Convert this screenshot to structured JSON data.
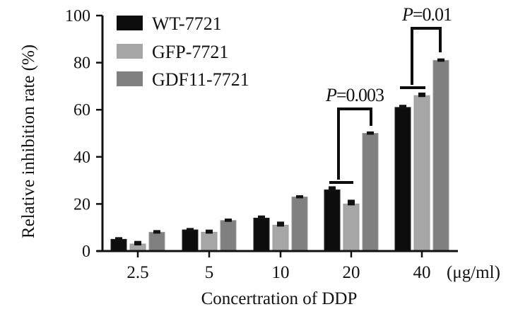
{
  "chart_data": {
    "type": "bar",
    "title": "",
    "xlabel": "Concertration of DDP",
    "x_unit": "(μg/ml)",
    "ylabel": "Relative inhibition rate (%)",
    "ylim": [
      0,
      100
    ],
    "yticks": [
      "0",
      "20",
      "40",
      "60",
      "80",
      "100"
    ],
    "categories": [
      "2.5",
      "5",
      "10",
      "20",
      "40"
    ],
    "legend_position": "top-left",
    "series": [
      {
        "name": "WT-7721",
        "color": "#0d0d0d",
        "values": [
          5,
          9,
          14,
          26,
          61
        ],
        "errors": [
          0.6,
          0.5,
          0.8,
          1.2,
          0.8
        ]
      },
      {
        "name": "GFP-7721",
        "color": "#a6a6a6",
        "values": [
          3,
          8,
          11,
          20,
          66
        ],
        "errors": [
          1.0,
          0.8,
          1.2,
          1.5,
          1.0
        ]
      },
      {
        "name": "GDF11-7721",
        "color": "#808080",
        "values": [
          8,
          13,
          23,
          50,
          81
        ],
        "errors": [
          0.6,
          0.5,
          0.4,
          0.5,
          0.5
        ]
      }
    ],
    "annotations": [
      {
        "category": "20",
        "text_italic": "P",
        "text_rest": "=0.003"
      },
      {
        "category": "40",
        "text_italic": "P",
        "text_rest": "=0.01"
      }
    ]
  }
}
